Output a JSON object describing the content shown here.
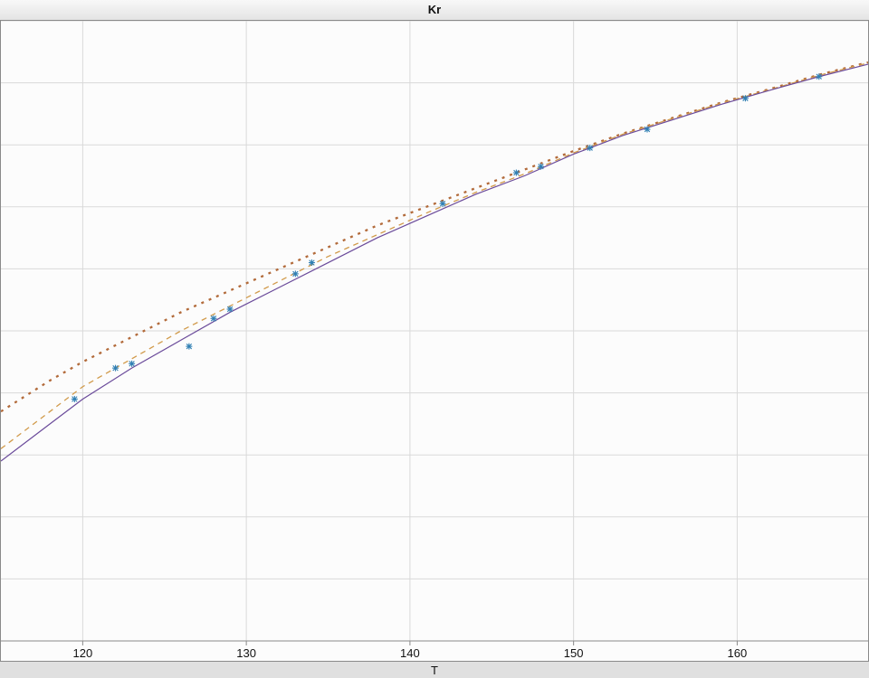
{
  "chart": {
    "type": "line-scatter",
    "title": "Kr",
    "xlabel": "T",
    "background_color": "#fcfcfc",
    "window_background": "#ececec",
    "grid_color": "#d9d9d9",
    "axis_color": "#8a8a8a",
    "xlim": [
      115,
      168
    ],
    "ylim": [
      0,
      100
    ],
    "xticks": [
      120,
      130,
      140,
      150,
      160
    ],
    "yticks": [
      0,
      10,
      20,
      30,
      40,
      50,
      60,
      70,
      80,
      90,
      100
    ],
    "y_left_edge_value": 39,
    "y_right_edge_value": 93,
    "title_fontsize": 13,
    "label_fontsize": 13,
    "tick_fontsize": 13,
    "series": {
      "scatter": {
        "type": "scatter",
        "marker": "asterisk",
        "marker_size": 7,
        "color": "#2f7fb3",
        "line_width": 1.1,
        "points": [
          [
            119.5,
            39.0
          ],
          [
            122.0,
            44.0
          ],
          [
            123.0,
            44.7
          ],
          [
            126.5,
            47.5
          ],
          [
            128.0,
            52.0
          ],
          [
            129.0,
            53.5
          ],
          [
            133.0,
            59.2
          ],
          [
            134.0,
            61.0
          ],
          [
            142.0,
            70.5
          ],
          [
            146.5,
            75.5
          ],
          [
            148.0,
            76.5
          ],
          [
            151.0,
            79.5
          ],
          [
            154.5,
            82.5
          ],
          [
            160.5,
            87.5
          ],
          [
            165.0,
            91.0
          ]
        ]
      },
      "solid": {
        "type": "line",
        "color": "#6a4a9a",
        "line_width": 1.2,
        "dash": "none",
        "points": [
          [
            115.0,
            29.0
          ],
          [
            118.0,
            35.0
          ],
          [
            120.0,
            39.0
          ],
          [
            123.0,
            44.0
          ],
          [
            126.0,
            48.5
          ],
          [
            129.0,
            53.0
          ],
          [
            132.0,
            57.0
          ],
          [
            135.0,
            61.0
          ],
          [
            138.0,
            65.0
          ],
          [
            141.0,
            68.5
          ],
          [
            144.0,
            72.0
          ],
          [
            147.0,
            75.0
          ],
          [
            150.0,
            78.5
          ],
          [
            153.0,
            81.5
          ],
          [
            156.0,
            84.0
          ],
          [
            159.0,
            86.5
          ],
          [
            162.0,
            88.8
          ],
          [
            165.0,
            91.0
          ],
          [
            168.0,
            93.0
          ]
        ]
      },
      "dashed": {
        "type": "line",
        "color": "#d19a4a",
        "line_width": 1.3,
        "dash": "6,5",
        "points": [
          [
            115.0,
            31.0
          ],
          [
            118.0,
            37.0
          ],
          [
            120.0,
            41.0
          ],
          [
            123.0,
            45.5
          ],
          [
            126.0,
            50.0
          ],
          [
            129.0,
            54.0
          ],
          [
            132.0,
            58.0
          ],
          [
            135.0,
            62.0
          ],
          [
            138.0,
            65.5
          ],
          [
            141.0,
            69.0
          ],
          [
            144.0,
            72.3
          ],
          [
            147.0,
            75.3
          ],
          [
            150.0,
            78.7
          ],
          [
            153.0,
            81.7
          ],
          [
            156.0,
            84.2
          ],
          [
            159.0,
            86.7
          ],
          [
            162.0,
            88.9
          ],
          [
            165.0,
            91.2
          ],
          [
            168.0,
            93.2
          ]
        ]
      },
      "dotted": {
        "type": "line",
        "color": "#b26a3a",
        "line_width": 2.3,
        "dash": "3,6",
        "points": [
          [
            115.0,
            37.0
          ],
          [
            118.0,
            42.0
          ],
          [
            120.0,
            45.0
          ],
          [
            123.0,
            49.0
          ],
          [
            126.0,
            53.0
          ],
          [
            129.0,
            56.5
          ],
          [
            132.0,
            60.0
          ],
          [
            135.0,
            63.5
          ],
          [
            138.0,
            67.0
          ],
          [
            141.0,
            70.0
          ],
          [
            144.0,
            73.0
          ],
          [
            147.0,
            76.0
          ],
          [
            150.0,
            79.0
          ],
          [
            153.0,
            81.8
          ],
          [
            156.0,
            84.3
          ],
          [
            159.0,
            86.8
          ],
          [
            162.0,
            89.0
          ],
          [
            165.0,
            91.3
          ],
          [
            168.0,
            93.3
          ]
        ]
      }
    }
  }
}
